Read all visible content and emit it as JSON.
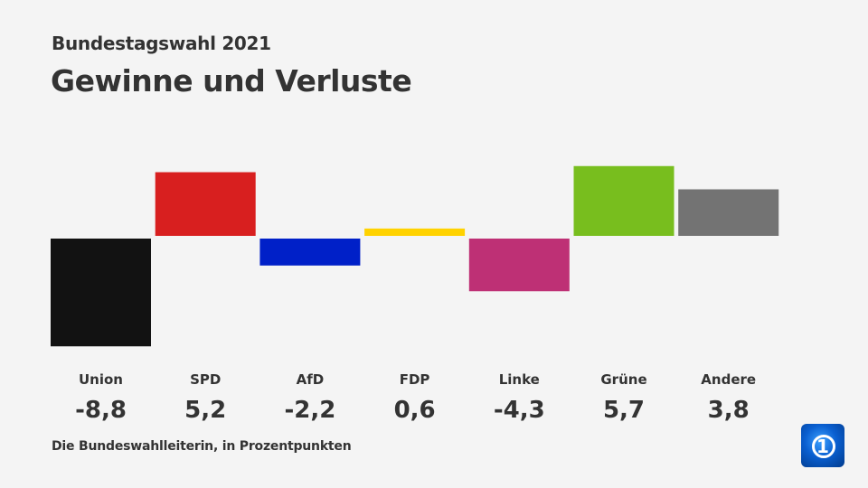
{
  "header": {
    "supertitle": "Bundestagswahl 2021",
    "title": "Gewinne und Verluste"
  },
  "source": "Die Bundeswahlleiterin, in Prozentpunkten",
  "logo": {
    "text": "1"
  },
  "chart_data": {
    "type": "bar",
    "categories": [
      "Union",
      "SPD",
      "AfD",
      "FDP",
      "Linke",
      "Grüne",
      "Andere"
    ],
    "values": [
      -8.8,
      5.2,
      -2.2,
      0.6,
      -4.3,
      5.7,
      3.8
    ],
    "value_labels": [
      "-8,8",
      "5,2",
      "-2,2",
      "0,6",
      "-4,3",
      "5,7",
      "3,8"
    ],
    "colors": [
      "#121212",
      "#d81f1f",
      "#0020c8",
      "#ffd200",
      "#be3075",
      "#78be1e",
      "#737373"
    ],
    "title": "Gewinne und Verluste",
    "xlabel": "",
    "ylabel": "",
    "grid": false
  }
}
